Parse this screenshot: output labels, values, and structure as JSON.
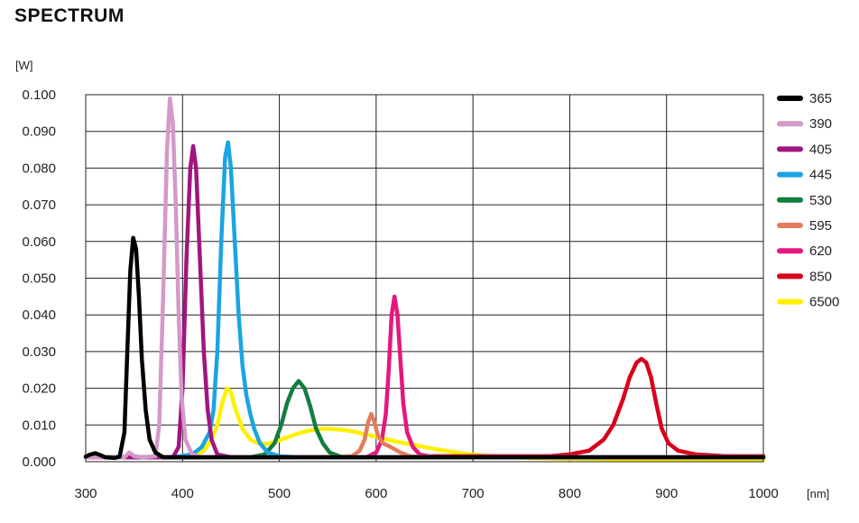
{
  "title": "SPECTRUM",
  "chart_data": {
    "type": "line",
    "title": "SPECTRUM",
    "ylabel": "[W]",
    "xlabel": "[nm]",
    "xlim": [
      300,
      1000
    ],
    "ylim": [
      0,
      0.1
    ],
    "grid": true,
    "legend_position": "right",
    "x_ticks": [
      "300",
      "400",
      "500",
      "600",
      "700",
      "800",
      "900",
      "1000"
    ],
    "y_ticks": [
      "0.000",
      "0.010",
      "0.020",
      "0.030",
      "0.040",
      "0.050",
      "0.060",
      "0.070",
      "0.080",
      "0.090",
      "0.100"
    ],
    "series": [
      {
        "name": "365",
        "color": "#000000",
        "points": [
          [
            300,
            0.0014
          ],
          [
            305,
            0.002
          ],
          [
            310,
            0.0023
          ],
          [
            315,
            0.0018
          ],
          [
            320,
            0.0012
          ],
          [
            330,
            0.001
          ],
          [
            335,
            0.0014
          ],
          [
            340,
            0.008
          ],
          [
            343,
            0.03
          ],
          [
            346,
            0.052
          ],
          [
            349,
            0.061
          ],
          [
            352,
            0.058
          ],
          [
            355,
            0.045
          ],
          [
            358,
            0.028
          ],
          [
            362,
            0.014
          ],
          [
            366,
            0.006
          ],
          [
            372,
            0.0025
          ],
          [
            380,
            0.0012
          ],
          [
            400,
            0.0012
          ],
          [
            500,
            0.0012
          ],
          [
            700,
            0.0012
          ],
          [
            1000,
            0.0012
          ]
        ]
      },
      {
        "name": "390",
        "color": "#d499c8",
        "points": [
          [
            300,
            0.0012
          ],
          [
            340,
            0.0012
          ],
          [
            345,
            0.0025
          ],
          [
            350,
            0.0015
          ],
          [
            360,
            0.0012
          ],
          [
            372,
            0.0015
          ],
          [
            376,
            0.01
          ],
          [
            380,
            0.045
          ],
          [
            384,
            0.085
          ],
          [
            387,
            0.099
          ],
          [
            390,
            0.092
          ],
          [
            393,
            0.07
          ],
          [
            396,
            0.04
          ],
          [
            399,
            0.018
          ],
          [
            403,
            0.006
          ],
          [
            410,
            0.002
          ],
          [
            420,
            0.0012
          ],
          [
            500,
            0.0012
          ],
          [
            1000,
            0.0012
          ]
        ]
      },
      {
        "name": "405",
        "color": "#a0167f",
        "points": [
          [
            300,
            0.0012
          ],
          [
            390,
            0.0012
          ],
          [
            396,
            0.004
          ],
          [
            400,
            0.02
          ],
          [
            404,
            0.055
          ],
          [
            408,
            0.08
          ],
          [
            411,
            0.086
          ],
          [
            414,
            0.08
          ],
          [
            418,
            0.055
          ],
          [
            422,
            0.03
          ],
          [
            426,
            0.014
          ],
          [
            430,
            0.006
          ],
          [
            436,
            0.002
          ],
          [
            450,
            0.0012
          ],
          [
            1000,
            0.0012
          ]
        ]
      },
      {
        "name": "445",
        "color": "#1aa4e2",
        "points": [
          [
            300,
            0.0012
          ],
          [
            390,
            0.0012
          ],
          [
            410,
            0.002
          ],
          [
            420,
            0.004
          ],
          [
            428,
            0.008
          ],
          [
            432,
            0.014
          ],
          [
            436,
            0.03
          ],
          [
            440,
            0.06
          ],
          [
            444,
            0.083
          ],
          [
            447,
            0.087
          ],
          [
            450,
            0.08
          ],
          [
            454,
            0.06
          ],
          [
            458,
            0.04
          ],
          [
            462,
            0.026
          ],
          [
            466,
            0.018
          ],
          [
            470,
            0.013
          ],
          [
            474,
            0.009
          ],
          [
            480,
            0.005
          ],
          [
            488,
            0.0025
          ],
          [
            500,
            0.0015
          ],
          [
            520,
            0.0012
          ],
          [
            1000,
            0.0012
          ]
        ]
      },
      {
        "name": "530",
        "color": "#137d3f",
        "points": [
          [
            300,
            0.0012
          ],
          [
            470,
            0.0012
          ],
          [
            485,
            0.002
          ],
          [
            495,
            0.005
          ],
          [
            502,
            0.01
          ],
          [
            508,
            0.016
          ],
          [
            514,
            0.02
          ],
          [
            520,
            0.022
          ],
          [
            526,
            0.02
          ],
          [
            532,
            0.015
          ],
          [
            538,
            0.009
          ],
          [
            545,
            0.005
          ],
          [
            552,
            0.0025
          ],
          [
            565,
            0.0012
          ],
          [
            1000,
            0.0012
          ]
        ]
      },
      {
        "name": "595",
        "color": "#e47c5c",
        "points": [
          [
            300,
            0.0012
          ],
          [
            550,
            0.0012
          ],
          [
            575,
            0.0015
          ],
          [
            583,
            0.003
          ],
          [
            588,
            0.006
          ],
          [
            592,
            0.011
          ],
          [
            595,
            0.013
          ],
          [
            598,
            0.011
          ],
          [
            602,
            0.007
          ],
          [
            607,
            0.005
          ],
          [
            615,
            0.004
          ],
          [
            625,
            0.0025
          ],
          [
            635,
            0.0015
          ],
          [
            650,
            0.0012
          ],
          [
            1000,
            0.0012
          ]
        ]
      },
      {
        "name": "620",
        "color": "#e5177e",
        "points": [
          [
            300,
            0.0012
          ],
          [
            590,
            0.0012
          ],
          [
            600,
            0.0025
          ],
          [
            606,
            0.006
          ],
          [
            610,
            0.013
          ],
          [
            613,
            0.025
          ],
          [
            616,
            0.04
          ],
          [
            619,
            0.045
          ],
          [
            622,
            0.04
          ],
          [
            625,
            0.028
          ],
          [
            628,
            0.016
          ],
          [
            632,
            0.008
          ],
          [
            638,
            0.004
          ],
          [
            645,
            0.002
          ],
          [
            660,
            0.0012
          ],
          [
            1000,
            0.0012
          ]
        ]
      },
      {
        "name": "850",
        "color": "#d9001b",
        "points": [
          [
            300,
            0.0012
          ],
          [
            640,
            0.0012
          ],
          [
            660,
            0.0015
          ],
          [
            700,
            0.0015
          ],
          [
            780,
            0.0015
          ],
          [
            800,
            0.002
          ],
          [
            820,
            0.003
          ],
          [
            835,
            0.006
          ],
          [
            845,
            0.01
          ],
          [
            855,
            0.017
          ],
          [
            862,
            0.023
          ],
          [
            869,
            0.027
          ],
          [
            874,
            0.028
          ],
          [
            879,
            0.027
          ],
          [
            884,
            0.023
          ],
          [
            890,
            0.015
          ],
          [
            895,
            0.009
          ],
          [
            902,
            0.005
          ],
          [
            912,
            0.003
          ],
          [
            930,
            0.002
          ],
          [
            960,
            0.0015
          ],
          [
            1000,
            0.0015
          ]
        ]
      },
      {
        "name": "6500",
        "color": "#fff000",
        "points": [
          [
            300,
            0.0012
          ],
          [
            400,
            0.0012
          ],
          [
            412,
            0.0015
          ],
          [
            422,
            0.003
          ],
          [
            430,
            0.006
          ],
          [
            436,
            0.01
          ],
          [
            441,
            0.016
          ],
          [
            446,
            0.02
          ],
          [
            450,
            0.019
          ],
          [
            455,
            0.014
          ],
          [
            462,
            0.009
          ],
          [
            470,
            0.006
          ],
          [
            478,
            0.005
          ],
          [
            486,
            0.0048
          ],
          [
            495,
            0.0053
          ],
          [
            505,
            0.0063
          ],
          [
            515,
            0.0073
          ],
          [
            525,
            0.0081
          ],
          [
            535,
            0.0087
          ],
          [
            545,
            0.009
          ],
          [
            555,
            0.0089
          ],
          [
            565,
            0.0087
          ],
          [
            575,
            0.0083
          ],
          [
            585,
            0.0077
          ],
          [
            600,
            0.0068
          ],
          [
            620,
            0.0055
          ],
          [
            640,
            0.0045
          ],
          [
            660,
            0.0035
          ],
          [
            680,
            0.0026
          ],
          [
            700,
            0.0019
          ],
          [
            720,
            0.0014
          ],
          [
            760,
            0.001
          ],
          [
            800,
            0.0008
          ],
          [
            850,
            0.0007
          ],
          [
            1000,
            0.0006
          ]
        ]
      }
    ]
  }
}
